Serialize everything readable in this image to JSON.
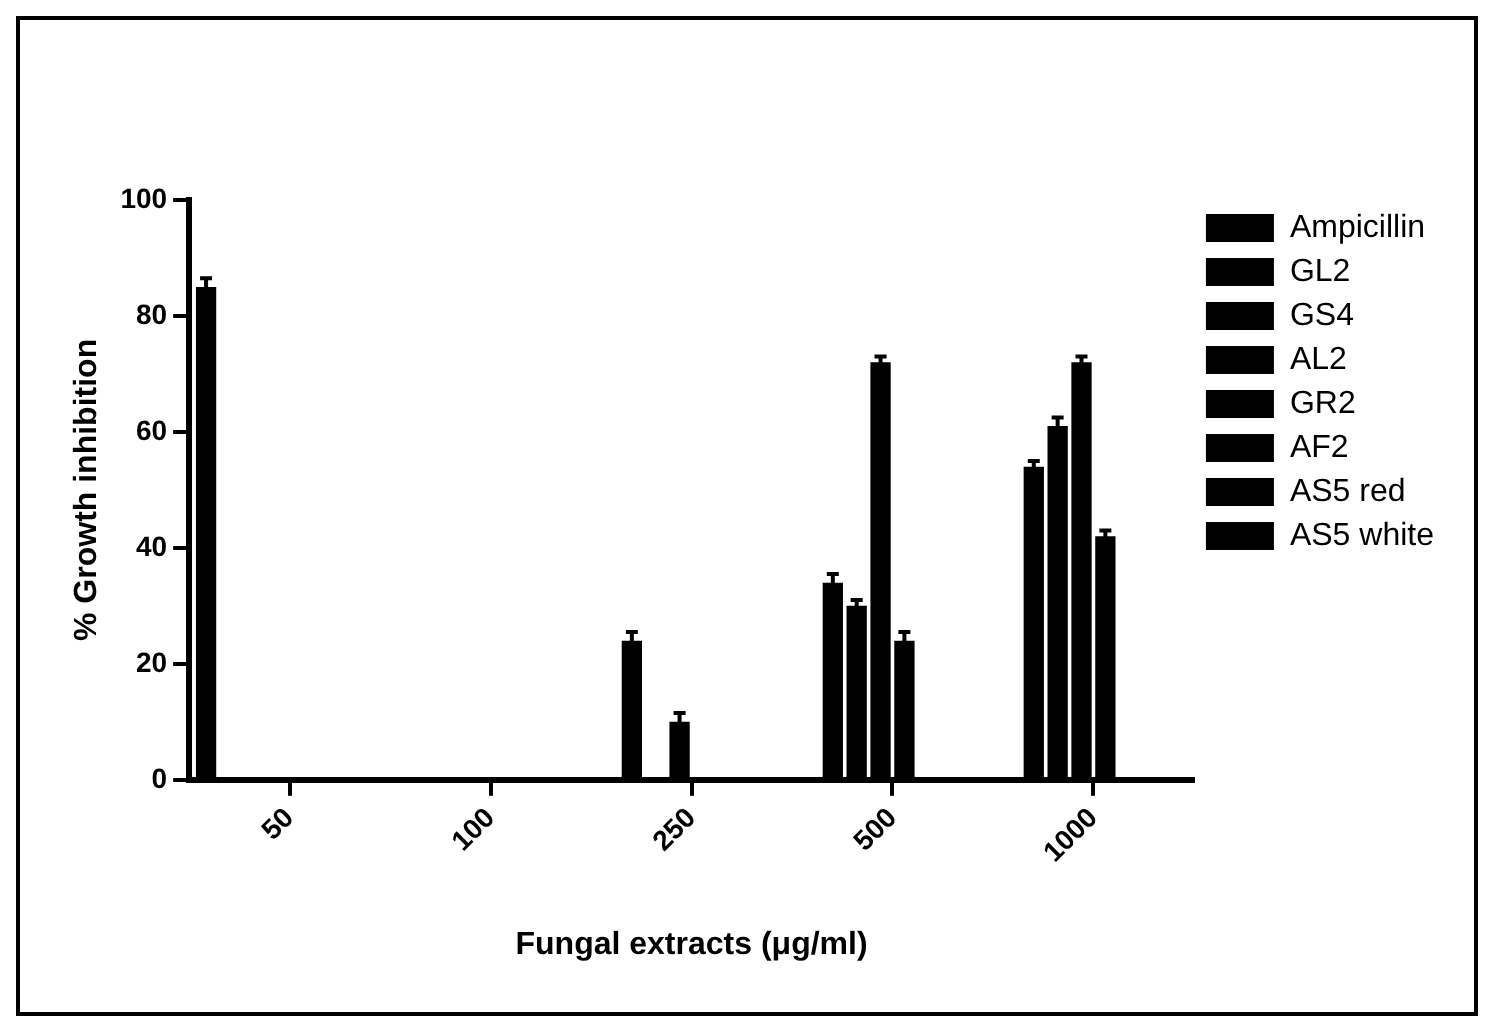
{
  "chart_data": {
    "type": "bar",
    "xlabel": "Fungal extracts (μg/ml)",
    "ylabel": "% Growth inhibition",
    "categories": [
      "50",
      "100",
      "250",
      "500",
      "1000"
    ],
    "ylim": [
      0,
      100
    ],
    "yticks": [
      0,
      20,
      40,
      60,
      80,
      100
    ],
    "grid": false,
    "legend": "right",
    "series": [
      {
        "name": "Ampicillin",
        "color": "#000000",
        "values": [
          85,
          null,
          null,
          null,
          null
        ],
        "errors": [
          1.5,
          null,
          null,
          null,
          null
        ]
      },
      {
        "name": "GL2",
        "color": "#000000",
        "values": [
          null,
          null,
          24,
          34,
          54
        ],
        "errors": [
          null,
          null,
          1.5,
          1.5,
          1
        ]
      },
      {
        "name": "GS4",
        "color": "#000000",
        "values": [
          null,
          null,
          null,
          30,
          61
        ],
        "errors": [
          null,
          null,
          null,
          1,
          1.5
        ]
      },
      {
        "name": "AL2",
        "color": "#000000",
        "values": [
          null,
          0,
          10,
          72,
          72
        ],
        "errors": [
          null,
          null,
          1.5,
          1,
          1
        ]
      },
      {
        "name": "GR2",
        "color": "#000000",
        "values": [
          null,
          null,
          null,
          24,
          42
        ],
        "errors": [
          null,
          null,
          null,
          1.5,
          1
        ]
      },
      {
        "name": "AF2",
        "color": "#000000",
        "values": [
          null,
          null,
          null,
          null,
          null
        ]
      },
      {
        "name": "AS5 red",
        "color": "#000000",
        "values": [
          null,
          null,
          null,
          null,
          null
        ]
      },
      {
        "name": "AS5 white",
        "color": "#000000",
        "values": [
          null,
          null,
          null,
          null,
          null
        ]
      }
    ]
  }
}
